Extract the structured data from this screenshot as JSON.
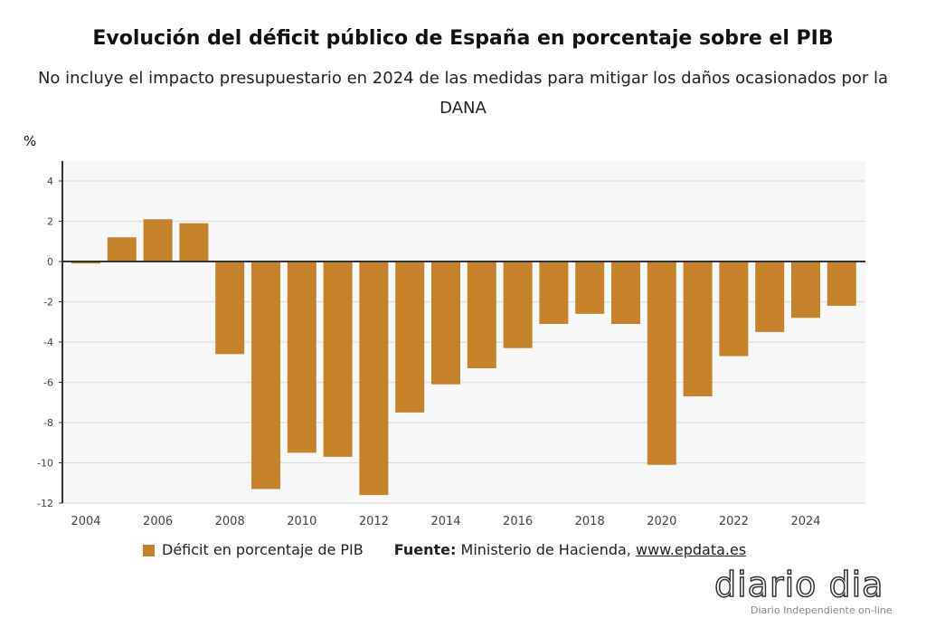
{
  "chart_data": {
    "type": "bar",
    "title": "Evolución del déficit público de España en porcentaje sobre el PIB",
    "subtitle": "No incluye el impacto presupuestario en 2024 de las medidas para mitigar los daños ocasionados por la DANA",
    "ylabel": "%",
    "xlabel": "",
    "categories": [
      2004,
      2005,
      2006,
      2007,
      2008,
      2009,
      2010,
      2011,
      2012,
      2013,
      2014,
      2015,
      2016,
      2017,
      2018,
      2019,
      2020,
      2021,
      2022,
      2023,
      2024,
      2025
    ],
    "series": [
      {
        "name": "Déficit en porcentaje de PIB",
        "values": [
          -0.1,
          1.2,
          2.1,
          1.9,
          -4.6,
          -11.3,
          -9.5,
          -9.7,
          -11.6,
          -7.5,
          -6.1,
          -5.3,
          -4.3,
          -3.1,
          -2.6,
          -3.1,
          -10.1,
          -6.7,
          -4.7,
          -3.5,
          -2.8,
          -2.2
        ]
      }
    ],
    "ylim": [
      -12,
      5
    ],
    "yticks": [
      4,
      2,
      0,
      -2,
      -4,
      -6,
      -8,
      -10,
      -12
    ],
    "xticks": [
      2004,
      2006,
      2008,
      2010,
      2012,
      2014,
      2016,
      2018,
      2020,
      2022,
      2024
    ],
    "grid": true,
    "legend": "bottom",
    "color": "#c5822a"
  },
  "source": {
    "label": "Fuente:",
    "text": " Ministerio de Hacienda, ",
    "link": "www.epdata.es"
  },
  "logo": {
    "name": "diario dia",
    "tagline": "Diario Independiente on-line"
  }
}
